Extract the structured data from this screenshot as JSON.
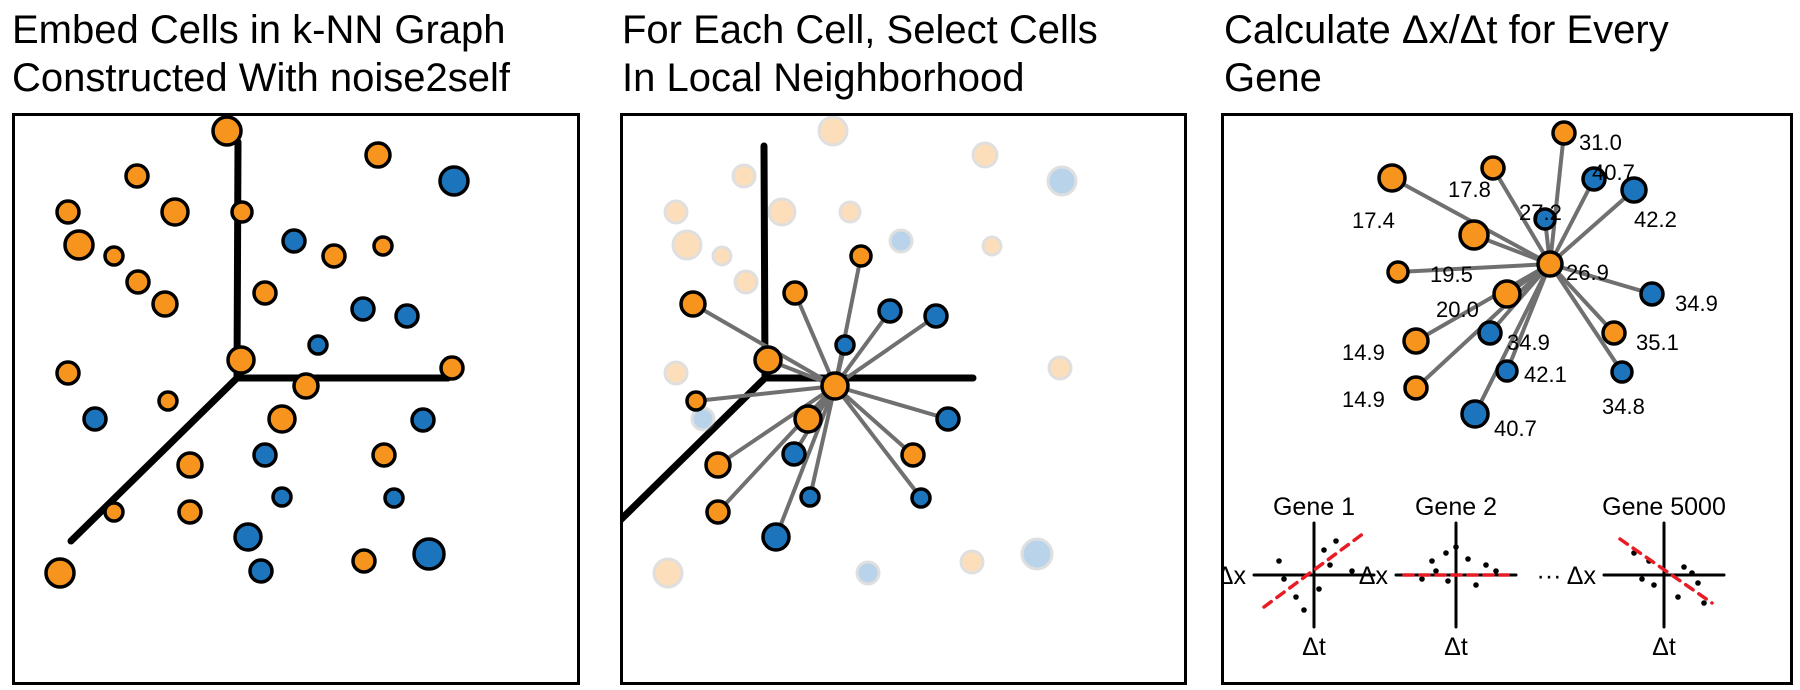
{
  "colors": {
    "orange": "#f7941d",
    "blue": "#1c75bc",
    "edge": "#707070",
    "fit": "#e81c24"
  },
  "panels": [
    {
      "title_lines": [
        "Embed Cells in k-NN Graph",
        "Constructed With noise2self"
      ]
    },
    {
      "title_lines": [
        "For Each Cell, Select Cells",
        "In Local Neighborhood"
      ]
    },
    {
      "title_lines": [
        "Calculate Δx/Δt for Every",
        "Gene"
      ]
    }
  ],
  "distance_labels": [
    "31.0",
    "40.7",
    "42.2",
    "17.8",
    "27.2",
    "17.4",
    "26.9",
    "19.5",
    "34.9",
    "20.0",
    "34.9",
    "35.1",
    "14.9",
    "42.1",
    "34.8",
    "14.9",
    "40.7"
  ],
  "genes": [
    {
      "title": "Gene 1",
      "xlabel": "Δt",
      "ylabel": "Δx"
    },
    {
      "title": "Gene 2",
      "xlabel": "Δt",
      "ylabel": "Δx"
    },
    {
      "title": "Gene 5000",
      "xlabel": "Δt",
      "ylabel": "Δx"
    }
  ],
  "ellipsis": "···"
}
